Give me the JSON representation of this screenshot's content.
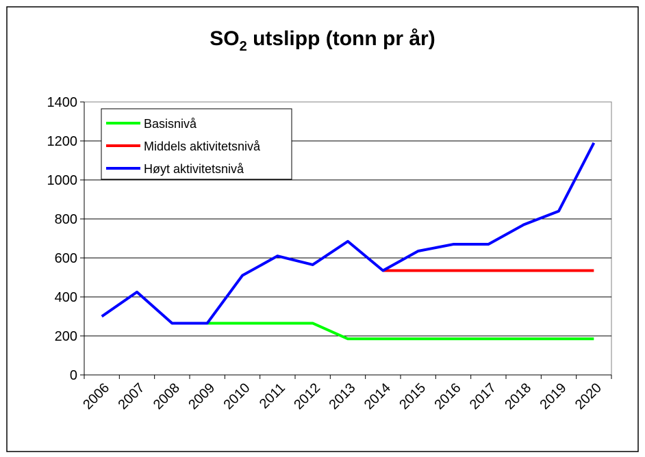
{
  "chart_data": {
    "type": "line",
    "title": [
      "SO",
      "2",
      " utslipp (tonn pr år)"
    ],
    "categories": [
      "2006",
      "2007",
      "2008",
      "2009",
      "2010",
      "2011",
      "2012",
      "2013",
      "2014",
      "2015",
      "2016",
      "2017",
      "2018",
      "2019",
      "2020"
    ],
    "series": [
      {
        "name": "Basisnivå",
        "color": "#00ff00",
        "values": [
          null,
          null,
          null,
          265,
          265,
          265,
          265,
          185,
          185,
          185,
          185,
          185,
          185,
          185,
          185
        ]
      },
      {
        "name": "Middels aktivitetsnivå",
        "color": "#ff0000",
        "values": [
          null,
          null,
          null,
          null,
          null,
          null,
          null,
          null,
          535,
          535,
          535,
          535,
          535,
          535,
          535
        ]
      },
      {
        "name": "Høyt aktivitetsnivå",
        "color": "#0000ff",
        "values": [
          300,
          425,
          265,
          265,
          510,
          610,
          565,
          685,
          535,
          635,
          670,
          670,
          770,
          840,
          1190
        ]
      }
    ],
    "ylim": [
      0,
      1400
    ],
    "yticks": [
      0,
      200,
      400,
      600,
      800,
      1000,
      1200,
      1400
    ],
    "grid": true,
    "legend": "top-left"
  }
}
